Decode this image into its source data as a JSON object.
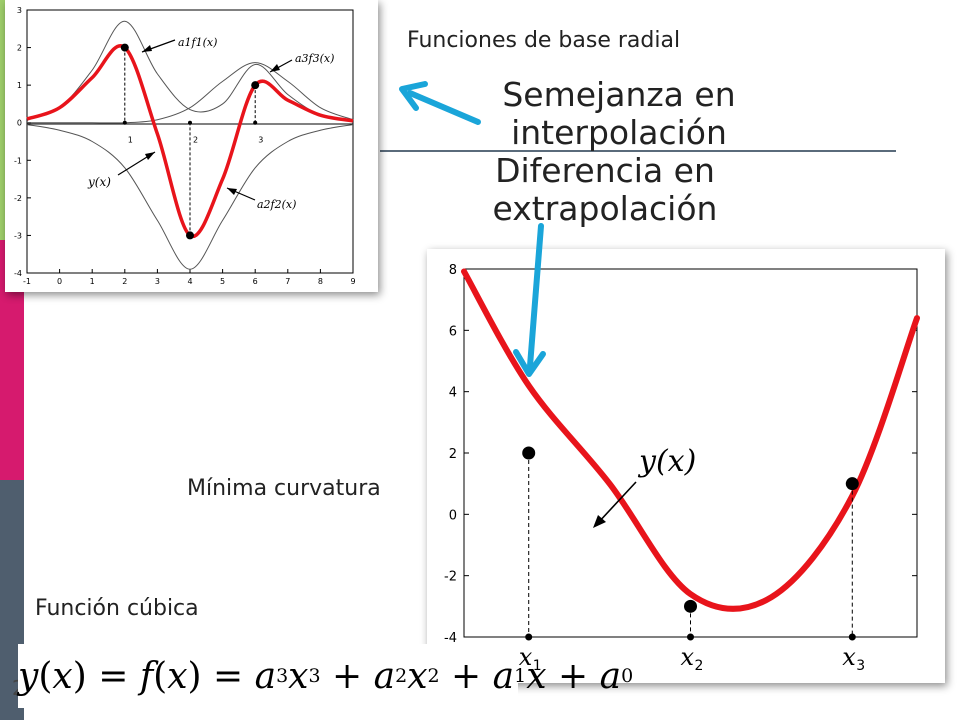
{
  "slide": {
    "rbf_label": "Funciones de base radial",
    "similarity": [
      "Semejanza en",
      "interpolación"
    ],
    "difference": [
      "Diferencia en",
      "extrapolación"
    ],
    "min_curv_label": "Mínima curvatura",
    "cubic_label": "Función cúbica",
    "page_number": "2",
    "formula": {
      "y": "y",
      "x": "x",
      "f": "f",
      "a3": "a",
      "i3": "3",
      "e3": "3",
      "a2": "a",
      "i2": "2",
      "e2": "2",
      "a1": "a",
      "i1": "1",
      "a0": "a",
      "i0": "0"
    },
    "colors": {
      "curve": "#e8141b",
      "arrow": "#1aa5d9",
      "accent_green": "#9fcf6b",
      "accent_magenta": "#d61a6e",
      "accent_slate": "#4f5e6e"
    }
  },
  "chart_data": [
    {
      "type": "line",
      "title": "",
      "xlabel": "",
      "ylabel": "",
      "xlim": [
        -1,
        9
      ],
      "ylim": [
        -4,
        3
      ],
      "xticks": [
        "-1",
        "0",
        "1",
        "2",
        "3",
        "4",
        "5",
        "6",
        "7",
        "8",
        "9"
      ],
      "yticks": [
        "3",
        "2",
        "1",
        "0",
        "-1",
        "-2",
        "-3",
        "-4"
      ],
      "series": [
        {
          "name": "a1f1(x)",
          "x": [
            -1,
            0,
            1,
            2,
            3,
            4,
            5,
            6,
            7,
            8,
            9
          ],
          "y": [
            0.1,
            0.4,
            1.4,
            2.7,
            1.3,
            0.35,
            0.5,
            1.55,
            0.75,
            0.2,
            0.05
          ]
        },
        {
          "name": "a3f3(x)",
          "x": [
            -1,
            0,
            1,
            2,
            3,
            4,
            5,
            6,
            7,
            8,
            9
          ],
          "y": [
            0,
            0,
            0,
            0,
            0.08,
            0.4,
            1.1,
            1.6,
            1.1,
            0.4,
            0.08
          ]
        },
        {
          "name": "a2f2(x)",
          "x": [
            -1,
            0,
            1,
            2,
            3,
            4,
            5,
            6,
            7,
            8,
            9
          ],
          "y": [
            -0.05,
            -0.2,
            -0.5,
            -1.2,
            -2.6,
            -3.9,
            -2.6,
            -1.2,
            -0.5,
            -0.2,
            -0.05
          ]
        },
        {
          "name": "y(x)",
          "x": [
            -1,
            0,
            1,
            2,
            3,
            4,
            5,
            6,
            7,
            8,
            9
          ],
          "y": [
            0.1,
            0.4,
            1.2,
            2.0,
            -0.3,
            -3.0,
            -1.5,
            1.0,
            0.6,
            0.2,
            0.05
          ]
        }
      ],
      "points": [
        {
          "x": 2,
          "y": 2
        },
        {
          "x": 4,
          "y": -3
        },
        {
          "x": 6,
          "y": 1
        }
      ],
      "point_labels": [
        "1",
        "2",
        "3"
      ],
      "annotations": [
        {
          "text": "a1f1(x)",
          "target": "a1f1(x)"
        },
        {
          "text": "a3f3(x)",
          "target": "a3f3(x)"
        },
        {
          "text": "y(x)",
          "target": "y(x)"
        },
        {
          "text": "a2f2(x)",
          "target": "a2f2(x)"
        }
      ]
    },
    {
      "type": "line",
      "title": "",
      "xlabel": "",
      "ylabel": "",
      "xlim": [
        -1.6,
        9.6
      ],
      "ylim": [
        -4,
        8
      ],
      "yticks": [
        "8",
        "6",
        "4",
        "2",
        "0",
        "-2",
        "-4"
      ],
      "xtick_labels": [
        {
          "base": "x",
          "sub": "1"
        },
        {
          "base": "x",
          "sub": "2"
        },
        {
          "base": "x",
          "sub": "3"
        }
      ],
      "series": [
        {
          "name": "y(x)",
          "x": [
            -1.6,
            0,
            2,
            4,
            6,
            8,
            9.6
          ],
          "y": [
            7.92,
            4.2,
            1.0,
            -2.6,
            -2.7,
            0.6,
            6.4
          ]
        }
      ],
      "points": [
        {
          "x": 0,
          "y": 2
        },
        {
          "x": 4,
          "y": -3
        },
        {
          "x": 8,
          "y": 1
        }
      ],
      "annotations": [
        {
          "text": "y(x)"
        }
      ]
    }
  ]
}
